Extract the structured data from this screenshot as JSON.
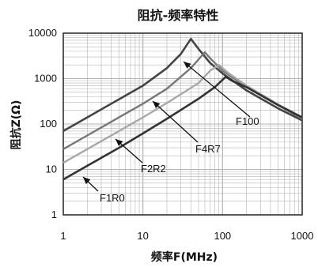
{
  "chart_data": {
    "type": "line",
    "title": "阻抗-频率特性",
    "xlabel": "频率F(MHz)",
    "ylabel": "阻抗Z(Ω)",
    "x_scale": "log",
    "y_scale": "log",
    "xlim": [
      1,
      1000
    ],
    "ylim": [
      1,
      10000
    ],
    "x_ticks": [
      1,
      10,
      100,
      1000
    ],
    "x_tick_labels": [
      "1",
      "10",
      "100",
      "1000"
    ],
    "y_ticks": [
      1,
      10,
      100,
      1000,
      10000
    ],
    "y_tick_labels": [
      "1",
      "10",
      "100",
      "1000",
      "10000"
    ],
    "grid": true,
    "colors": {
      "F100": "#444444",
      "F4R7": "#777777",
      "F2R2": "#a8a8a8",
      "F1R0": "#333333",
      "grid": "#b5b5b5",
      "frame": "#222222"
    },
    "series": [
      {
        "name": "F100",
        "x": [
          1,
          2,
          5,
          10,
          20,
          30,
          40,
          50,
          70,
          100,
          200,
          500,
          1000
        ],
        "y": [
          70,
          140,
          350,
          700,
          1700,
          3500,
          7500,
          4500,
          2200,
          1300,
          550,
          220,
          120
        ]
      },
      {
        "name": "F4R7",
        "x": [
          1,
          2,
          5,
          10,
          20,
          40,
          60,
          70,
          100,
          200,
          500,
          1000
        ],
        "y": [
          28,
          56,
          140,
          280,
          600,
          1700,
          3800,
          2800,
          1500,
          650,
          260,
          130
        ]
      },
      {
        "name": "F2R2",
        "x": [
          1,
          2,
          5,
          10,
          20,
          50,
          70,
          90,
          120,
          200,
          500,
          1000
        ],
        "y": [
          14,
          28,
          70,
          140,
          290,
          800,
          1500,
          2000,
          1300,
          700,
          270,
          140
        ]
      },
      {
        "name": "F1R0",
        "x": [
          1,
          2,
          5,
          10,
          20,
          50,
          80,
          110,
          130,
          200,
          500,
          1000
        ],
        "y": [
          6,
          12,
          30,
          62,
          130,
          360,
          650,
          1100,
          900,
          650,
          260,
          140
        ]
      }
    ],
    "annotations": [
      {
        "label": "F100",
        "series": "F100"
      },
      {
        "label": "F4R7",
        "series": "F4R7"
      },
      {
        "label": "F2R2",
        "series": "F2R2"
      },
      {
        "label": "F1R0",
        "series": "F1R0"
      }
    ]
  }
}
